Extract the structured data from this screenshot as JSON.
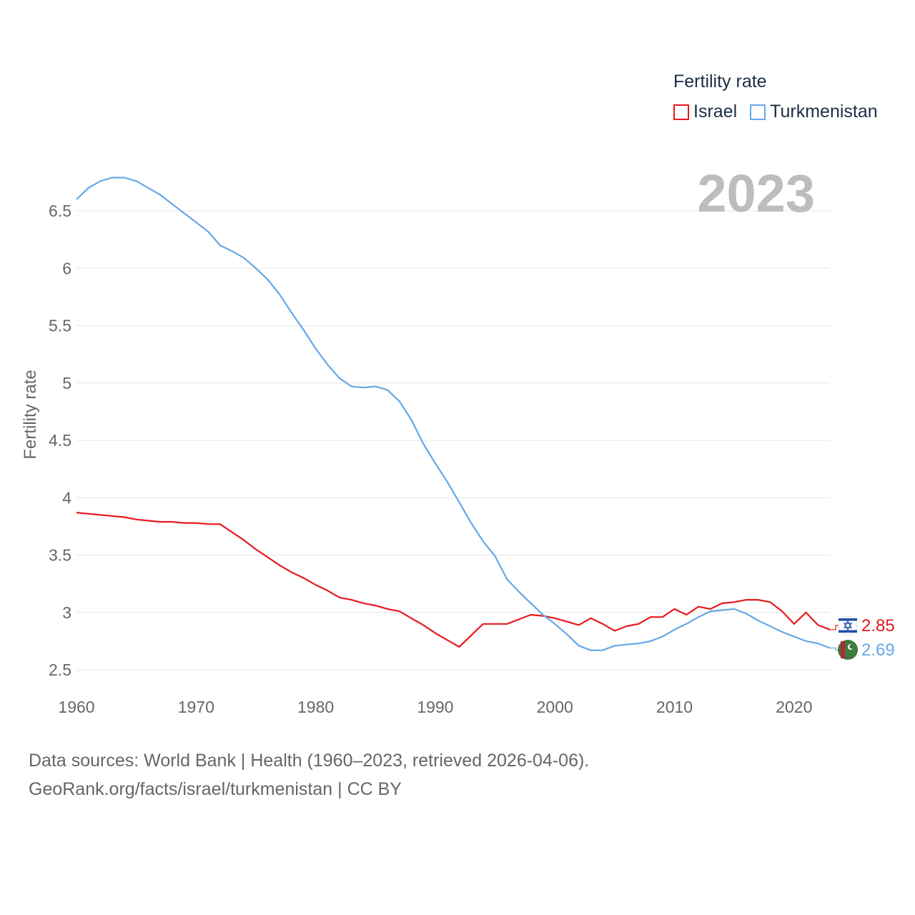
{
  "chart_data": {
    "type": "line",
    "title": "Fertility rate",
    "ylabel": "Fertility rate",
    "xlabel": "",
    "highlight_year": "2023",
    "xlim": [
      1960,
      2023
    ],
    "ylim": [
      2.4,
      6.8
    ],
    "y_ticks": [
      2.5,
      3,
      3.5,
      4,
      4.5,
      5,
      5.5,
      6,
      6.5
    ],
    "y_tick_labels": [
      "2.5",
      "3",
      "3.5",
      "4",
      "4.5",
      "5",
      "5.5",
      "6",
      "6.5"
    ],
    "x_ticks": [
      1960,
      1970,
      1980,
      1990,
      2000,
      2010,
      2020
    ],
    "x_tick_labels": [
      "1960",
      "1970",
      "1980",
      "1990",
      "2000",
      "2010",
      "2020"
    ],
    "grid": true,
    "legend_position": "top-right",
    "series": [
      {
        "name": "Israel",
        "color": "#e6191e",
        "end_label": "2.85",
        "flag": "israel-flag",
        "x": [
          1960,
          1961,
          1962,
          1963,
          1964,
          1965,
          1966,
          1967,
          1968,
          1969,
          1970,
          1971,
          1972,
          1973,
          1974,
          1975,
          1976,
          1977,
          1978,
          1979,
          1980,
          1981,
          1982,
          1983,
          1984,
          1985,
          1986,
          1987,
          1988,
          1989,
          1990,
          1991,
          1992,
          1993,
          1994,
          1995,
          1996,
          1997,
          1998,
          1999,
          2000,
          2001,
          2002,
          2003,
          2004,
          2005,
          2006,
          2007,
          2008,
          2009,
          2010,
          2011,
          2012,
          2013,
          2014,
          2015,
          2016,
          2017,
          2018,
          2019,
          2020,
          2021,
          2022,
          2023
        ],
        "values": [
          3.87,
          3.86,
          3.85,
          3.84,
          3.83,
          3.81,
          3.8,
          3.79,
          3.79,
          3.78,
          3.78,
          3.77,
          3.77,
          3.7,
          3.63,
          3.55,
          3.48,
          3.41,
          3.35,
          3.3,
          3.24,
          3.19,
          3.13,
          3.11,
          3.08,
          3.06,
          3.03,
          3.01,
          2.95,
          2.89,
          2.82,
          2.76,
          2.7,
          2.8,
          2.9,
          2.9,
          2.9,
          2.94,
          2.98,
          2.97,
          2.95,
          2.92,
          2.89,
          2.95,
          2.9,
          2.84,
          2.88,
          2.9,
          2.96,
          2.96,
          3.03,
          2.98,
          3.05,
          3.03,
          3.08,
          3.09,
          3.11,
          3.11,
          3.09,
          3.01,
          2.9,
          3.0,
          2.89,
          2.85
        ]
      },
      {
        "name": "Turkmenistan",
        "color": "#64a8e6",
        "end_label": "2.69",
        "flag": "turkmenistan-flag",
        "x": [
          1960,
          1961,
          1962,
          1963,
          1964,
          1965,
          1966,
          1967,
          1968,
          1969,
          1970,
          1971,
          1972,
          1973,
          1974,
          1975,
          1976,
          1977,
          1978,
          1979,
          1980,
          1981,
          1982,
          1983,
          1984,
          1985,
          1986,
          1987,
          1988,
          1989,
          1990,
          1991,
          1992,
          1993,
          1994,
          1995,
          1996,
          1997,
          1998,
          1999,
          2000,
          2001,
          2002,
          2003,
          2004,
          2005,
          2006,
          2007,
          2008,
          2009,
          2010,
          2011,
          2012,
          2013,
          2014,
          2015,
          2016,
          2017,
          2018,
          2019,
          2020,
          2021,
          2022,
          2023
        ],
        "values": [
          6.6,
          6.7,
          6.76,
          6.79,
          6.79,
          6.76,
          6.7,
          6.64,
          6.56,
          6.48,
          6.4,
          6.32,
          6.2,
          6.15,
          6.09,
          6.0,
          5.9,
          5.77,
          5.61,
          5.46,
          5.3,
          5.16,
          5.04,
          4.97,
          4.96,
          4.97,
          4.94,
          4.84,
          4.68,
          4.47,
          4.3,
          4.14,
          3.96,
          3.78,
          3.62,
          3.49,
          3.29,
          3.18,
          3.08,
          2.98,
          2.9,
          2.81,
          2.71,
          2.67,
          2.67,
          2.71,
          2.72,
          2.73,
          2.75,
          2.79,
          2.85,
          2.9,
          2.96,
          3.01,
          3.02,
          3.03,
          2.99,
          2.93,
          2.88,
          2.83,
          2.79,
          2.75,
          2.73,
          2.69
        ]
      }
    ]
  },
  "footer": {
    "line1": "Data sources: World Bank | Health (1960–2023, retrieved 2026-04-06).",
    "line2": "GeoRank.org/facts/israel/turkmenistan | CC BY"
  }
}
